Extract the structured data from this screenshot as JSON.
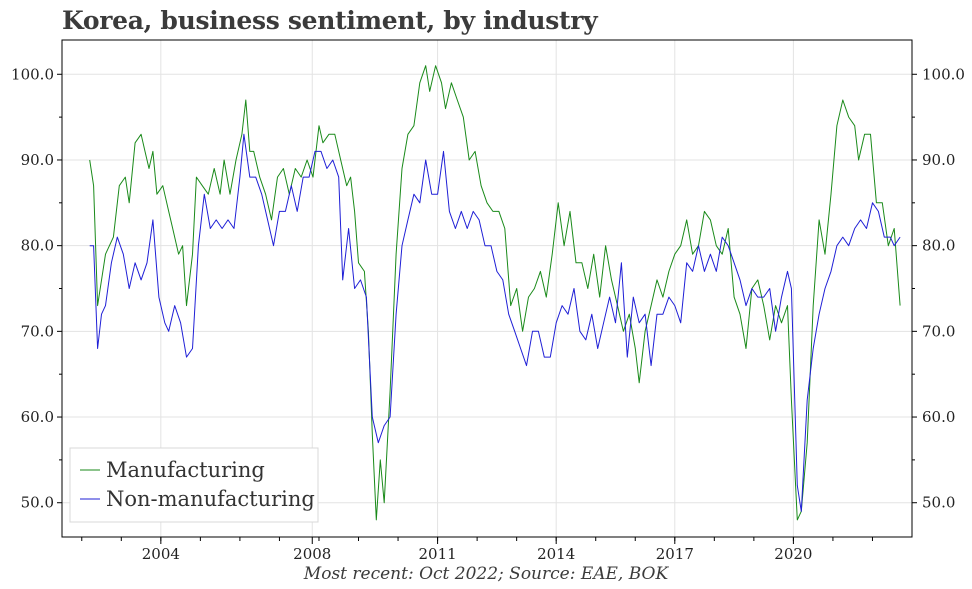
{
  "title": "Korea, business sentiment, by industry",
  "footnote": "Most recent: Oct 2022; Source: EAE, BOK",
  "chart_data": {
    "type": "line",
    "title": "Korea, business sentiment, by industry",
    "xlabel": "",
    "ylabel": "",
    "xlim": [
      2001.5,
      2023.0
    ],
    "ylim": [
      46.0,
      104.0
    ],
    "x_ticks": [
      "2004",
      "2008",
      "2011",
      "2014",
      "2017",
      "2020"
    ],
    "x_tick_values": [
      2004,
      2007.83,
      2011,
      2014,
      2017,
      2020
    ],
    "y_ticks": [
      "50.0",
      "60.0",
      "70.0",
      "80.0",
      "90.0",
      "100.0"
    ],
    "y_tick_values": [
      50,
      60,
      70,
      80,
      90,
      100
    ],
    "grid": true,
    "legend_position": "bottom-left",
    "colors": {
      "Manufacturing": "#1a8a1a",
      "Non-manufacturing": "#1f1fd6"
    },
    "series": [
      {
        "name": "Manufacturing",
        "points": [
          [
            2002.2,
            90
          ],
          [
            2002.3,
            87
          ],
          [
            2002.4,
            73
          ],
          [
            2002.6,
            79
          ],
          [
            2002.8,
            81
          ],
          [
            2002.95,
            87
          ],
          [
            2003.1,
            88
          ],
          [
            2003.2,
            85
          ],
          [
            2003.35,
            92
          ],
          [
            2003.5,
            93
          ],
          [
            2003.6,
            91
          ],
          [
            2003.7,
            89
          ],
          [
            2003.8,
            91
          ],
          [
            2003.9,
            86
          ],
          [
            2004.05,
            87
          ],
          [
            2004.2,
            84
          ],
          [
            2004.3,
            82
          ],
          [
            2004.45,
            79
          ],
          [
            2004.55,
            80
          ],
          [
            2004.65,
            73
          ],
          [
            2004.8,
            79
          ],
          [
            2004.9,
            88
          ],
          [
            2005.05,
            87
          ],
          [
            2005.2,
            86
          ],
          [
            2005.35,
            89
          ],
          [
            2005.5,
            86
          ],
          [
            2005.6,
            90
          ],
          [
            2005.75,
            86
          ],
          [
            2005.9,
            90
          ],
          [
            2006.05,
            93
          ],
          [
            2006.15,
            97
          ],
          [
            2006.25,
            91
          ],
          [
            2006.35,
            91
          ],
          [
            2006.5,
            88
          ],
          [
            2006.65,
            86
          ],
          [
            2006.8,
            83
          ],
          [
            2006.95,
            88
          ],
          [
            2007.1,
            89
          ],
          [
            2007.25,
            86
          ],
          [
            2007.4,
            89
          ],
          [
            2007.55,
            88
          ],
          [
            2007.7,
            90
          ],
          [
            2007.85,
            88
          ],
          [
            2008.0,
            94
          ],
          [
            2008.1,
            92
          ],
          [
            2008.25,
            93
          ],
          [
            2008.4,
            93
          ],
          [
            2008.55,
            90
          ],
          [
            2008.7,
            87
          ],
          [
            2008.8,
            88
          ],
          [
            2008.9,
            84
          ],
          [
            2009.0,
            78
          ],
          [
            2009.15,
            77
          ],
          [
            2009.25,
            70
          ],
          [
            2009.35,
            58
          ],
          [
            2009.45,
            48
          ],
          [
            2009.55,
            55
          ],
          [
            2009.65,
            50
          ],
          [
            2009.8,
            63
          ],
          [
            2009.95,
            79
          ],
          [
            2010.1,
            89
          ],
          [
            2010.25,
            93
          ],
          [
            2010.4,
            94
          ],
          [
            2010.55,
            99
          ],
          [
            2010.7,
            101
          ],
          [
            2010.8,
            98
          ],
          [
            2010.95,
            101
          ],
          [
            2011.1,
            99
          ],
          [
            2011.2,
            96
          ],
          [
            2011.35,
            99
          ],
          [
            2011.5,
            97
          ],
          [
            2011.65,
            95
          ],
          [
            2011.8,
            90
          ],
          [
            2011.95,
            91
          ],
          [
            2012.1,
            87
          ],
          [
            2012.25,
            85
          ],
          [
            2012.4,
            84
          ],
          [
            2012.55,
            84
          ],
          [
            2012.7,
            82
          ],
          [
            2012.85,
            73
          ],
          [
            2013.0,
            75
          ],
          [
            2013.15,
            70
          ],
          [
            2013.3,
            74
          ],
          [
            2013.45,
            75
          ],
          [
            2013.6,
            77
          ],
          [
            2013.75,
            74
          ],
          [
            2013.9,
            79
          ],
          [
            2014.05,
            85
          ],
          [
            2014.2,
            80
          ],
          [
            2014.35,
            84
          ],
          [
            2014.5,
            78
          ],
          [
            2014.65,
            78
          ],
          [
            2014.8,
            75
          ],
          [
            2014.95,
            79
          ],
          [
            2015.1,
            74
          ],
          [
            2015.25,
            80
          ],
          [
            2015.4,
            76
          ],
          [
            2015.55,
            73
          ],
          [
            2015.7,
            70
          ],
          [
            2015.85,
            72
          ],
          [
            2016.0,
            68
          ],
          [
            2016.1,
            64
          ],
          [
            2016.25,
            70
          ],
          [
            2016.4,
            73
          ],
          [
            2016.55,
            76
          ],
          [
            2016.7,
            74
          ],
          [
            2016.85,
            77
          ],
          [
            2017.0,
            79
          ],
          [
            2017.15,
            80
          ],
          [
            2017.3,
            83
          ],
          [
            2017.45,
            79
          ],
          [
            2017.6,
            80
          ],
          [
            2017.75,
            84
          ],
          [
            2017.9,
            83
          ],
          [
            2018.05,
            80
          ],
          [
            2018.2,
            79
          ],
          [
            2018.35,
            82
          ],
          [
            2018.5,
            74
          ],
          [
            2018.65,
            72
          ],
          [
            2018.8,
            68
          ],
          [
            2018.95,
            75
          ],
          [
            2019.1,
            76
          ],
          [
            2019.25,
            73
          ],
          [
            2019.4,
            69
          ],
          [
            2019.55,
            73
          ],
          [
            2019.7,
            71
          ],
          [
            2019.85,
            73
          ],
          [
            2019.95,
            62
          ],
          [
            2020.1,
            48
          ],
          [
            2020.2,
            49
          ],
          [
            2020.35,
            57
          ],
          [
            2020.5,
            73
          ],
          [
            2020.65,
            83
          ],
          [
            2020.8,
            79
          ],
          [
            2020.95,
            86
          ],
          [
            2021.1,
            94
          ],
          [
            2021.25,
            97
          ],
          [
            2021.4,
            95
          ],
          [
            2021.55,
            94
          ],
          [
            2021.65,
            90
          ],
          [
            2021.8,
            93
          ],
          [
            2021.95,
            93
          ],
          [
            2022.1,
            85
          ],
          [
            2022.25,
            85
          ],
          [
            2022.4,
            80
          ],
          [
            2022.55,
            82
          ],
          [
            2022.7,
            73
          ]
        ]
      },
      {
        "name": "Non-manufacturing",
        "points": [
          [
            2002.2,
            80
          ],
          [
            2002.3,
            80
          ],
          [
            2002.4,
            68
          ],
          [
            2002.5,
            72
          ],
          [
            2002.6,
            73
          ],
          [
            2002.75,
            78
          ],
          [
            2002.9,
            81
          ],
          [
            2003.05,
            79
          ],
          [
            2003.2,
            75
          ],
          [
            2003.35,
            78
          ],
          [
            2003.5,
            76
          ],
          [
            2003.65,
            78
          ],
          [
            2003.8,
            83
          ],
          [
            2003.95,
            74
          ],
          [
            2004.1,
            71
          ],
          [
            2004.2,
            70
          ],
          [
            2004.35,
            73
          ],
          [
            2004.5,
            71
          ],
          [
            2004.65,
            67
          ],
          [
            2004.8,
            68
          ],
          [
            2004.95,
            80
          ],
          [
            2005.1,
            86
          ],
          [
            2005.25,
            82
          ],
          [
            2005.4,
            83
          ],
          [
            2005.55,
            82
          ],
          [
            2005.7,
            83
          ],
          [
            2005.85,
            82
          ],
          [
            2006.0,
            88
          ],
          [
            2006.1,
            93
          ],
          [
            2006.25,
            88
          ],
          [
            2006.4,
            88
          ],
          [
            2006.55,
            86
          ],
          [
            2006.7,
            83
          ],
          [
            2006.85,
            80
          ],
          [
            2007.0,
            84
          ],
          [
            2007.15,
            84
          ],
          [
            2007.3,
            87
          ],
          [
            2007.45,
            84
          ],
          [
            2007.6,
            88
          ],
          [
            2007.75,
            88
          ],
          [
            2007.9,
            91
          ],
          [
            2008.05,
            91
          ],
          [
            2008.2,
            89
          ],
          [
            2008.35,
            90
          ],
          [
            2008.5,
            88
          ],
          [
            2008.6,
            76
          ],
          [
            2008.75,
            82
          ],
          [
            2008.9,
            75
          ],
          [
            2009.05,
            76
          ],
          [
            2009.2,
            74
          ],
          [
            2009.35,
            60
          ],
          [
            2009.5,
            57
          ],
          [
            2009.65,
            59
          ],
          [
            2009.8,
            60
          ],
          [
            2009.95,
            72
          ],
          [
            2010.1,
            80
          ],
          [
            2010.25,
            83
          ],
          [
            2010.4,
            86
          ],
          [
            2010.55,
            85
          ],
          [
            2010.7,
            90
          ],
          [
            2010.85,
            86
          ],
          [
            2011.0,
            86
          ],
          [
            2011.15,
            91
          ],
          [
            2011.3,
            84
          ],
          [
            2011.45,
            82
          ],
          [
            2011.6,
            84
          ],
          [
            2011.75,
            82
          ],
          [
            2011.9,
            84
          ],
          [
            2012.05,
            83
          ],
          [
            2012.2,
            80
          ],
          [
            2012.35,
            80
          ],
          [
            2012.5,
            77
          ],
          [
            2012.65,
            76
          ],
          [
            2012.8,
            72
          ],
          [
            2012.95,
            70
          ],
          [
            2013.1,
            68
          ],
          [
            2013.25,
            66
          ],
          [
            2013.4,
            70
          ],
          [
            2013.55,
            70
          ],
          [
            2013.7,
            67
          ],
          [
            2013.85,
            67
          ],
          [
            2014.0,
            71
          ],
          [
            2014.15,
            73
          ],
          [
            2014.3,
            72
          ],
          [
            2014.45,
            75
          ],
          [
            2014.6,
            70
          ],
          [
            2014.75,
            69
          ],
          [
            2014.9,
            72
          ],
          [
            2015.05,
            68
          ],
          [
            2015.2,
            71
          ],
          [
            2015.35,
            74
          ],
          [
            2015.5,
            71
          ],
          [
            2015.65,
            78
          ],
          [
            2015.8,
            67
          ],
          [
            2015.95,
            74
          ],
          [
            2016.1,
            71
          ],
          [
            2016.25,
            72
          ],
          [
            2016.4,
            66
          ],
          [
            2016.55,
            72
          ],
          [
            2016.7,
            72
          ],
          [
            2016.85,
            74
          ],
          [
            2017.0,
            73
          ],
          [
            2017.15,
            71
          ],
          [
            2017.3,
            78
          ],
          [
            2017.45,
            77
          ],
          [
            2017.6,
            80
          ],
          [
            2017.75,
            77
          ],
          [
            2017.9,
            79
          ],
          [
            2018.05,
            77
          ],
          [
            2018.2,
            81
          ],
          [
            2018.35,
            80
          ],
          [
            2018.5,
            78
          ],
          [
            2018.65,
            76
          ],
          [
            2018.8,
            73
          ],
          [
            2018.95,
            75
          ],
          [
            2019.1,
            74
          ],
          [
            2019.25,
            74
          ],
          [
            2019.4,
            75
          ],
          [
            2019.55,
            70
          ],
          [
            2019.7,
            74
          ],
          [
            2019.85,
            77
          ],
          [
            2019.95,
            75
          ],
          [
            2020.1,
            52
          ],
          [
            2020.2,
            49
          ],
          [
            2020.35,
            62
          ],
          [
            2020.5,
            68
          ],
          [
            2020.65,
            72
          ],
          [
            2020.8,
            75
          ],
          [
            2020.95,
            77
          ],
          [
            2021.1,
            80
          ],
          [
            2021.25,
            81
          ],
          [
            2021.4,
            80
          ],
          [
            2021.55,
            82
          ],
          [
            2021.7,
            83
          ],
          [
            2021.85,
            82
          ],
          [
            2022.0,
            85
          ],
          [
            2022.15,
            84
          ],
          [
            2022.3,
            81
          ],
          [
            2022.45,
            81
          ],
          [
            2022.55,
            80
          ],
          [
            2022.7,
            81
          ]
        ]
      }
    ]
  }
}
